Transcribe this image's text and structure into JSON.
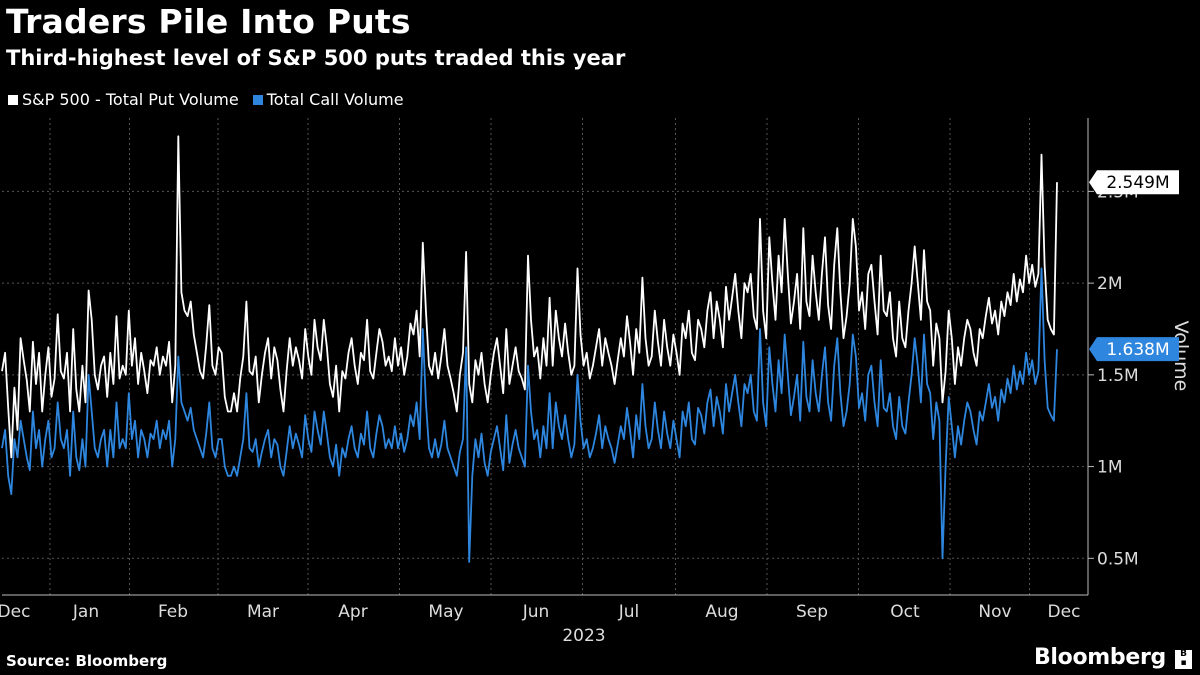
{
  "chart_data": {
    "type": "line",
    "title": "Traders Pile Into Puts",
    "subtitle": "Third-highest level of S&P 500 puts traded this year",
    "ylabel": "Volume",
    "ylim": [
      0.3,
      2.9
    ],
    "yticks": [
      0.5,
      1,
      1.5,
      2,
      2.5
    ],
    "ytick_labels": [
      "0.5M",
      "1M",
      "1.5M",
      "2M",
      "2.5M"
    ],
    "x_start": "2022-12-19",
    "x_end": "2023-12-15",
    "month_ticks": [
      {
        "label": "Dec",
        "date": "2022-12-23"
      },
      {
        "label": "Jan",
        "date": "2023-01-16"
      },
      {
        "label": "Feb",
        "date": "2023-02-14"
      },
      {
        "label": "Mar",
        "date": "2023-03-16"
      },
      {
        "label": "Apr",
        "date": "2023-04-15"
      },
      {
        "label": "May",
        "date": "2023-05-16"
      },
      {
        "label": "Jun",
        "date": "2023-06-15"
      },
      {
        "label": "Jul",
        "date": "2023-07-16"
      },
      {
        "label": "Aug",
        "date": "2023-08-16"
      },
      {
        "label": "Sep",
        "date": "2023-09-15"
      },
      {
        "label": "Oct",
        "date": "2023-10-16"
      },
      {
        "label": "Nov",
        "date": "2023-11-15"
      },
      {
        "label": "Dec",
        "date": "2023-12-08"
      }
    ],
    "x_year_label": "2023",
    "grid": true,
    "legend_position": "top-left",
    "series": [
      {
        "name": "S&P 500 - Total Put Volume",
        "color": "#ffffff",
        "last_value_label": "2.549M",
        "values": [
          1.52,
          1.62,
          1.32,
          1.05,
          1.43,
          1.2,
          1.7,
          1.58,
          1.47,
          1.3,
          1.68,
          1.45,
          1.62,
          1.3,
          1.5,
          1.65,
          1.38,
          1.48,
          1.83,
          1.52,
          1.48,
          1.62,
          1.3,
          1.75,
          1.42,
          1.3,
          1.55,
          1.35,
          1.96,
          1.8,
          1.5,
          1.42,
          1.55,
          1.6,
          1.38,
          1.62,
          1.45,
          1.82,
          1.48,
          1.55,
          1.5,
          1.85,
          1.55,
          1.7,
          1.45,
          1.62,
          1.52,
          1.4,
          1.58,
          1.55,
          1.65,
          1.5,
          1.6,
          1.55,
          1.68,
          1.35,
          1.55,
          2.8,
          1.95,
          1.85,
          1.82,
          1.9,
          1.72,
          1.62,
          1.52,
          1.48,
          1.66,
          1.88,
          1.55,
          1.5,
          1.65,
          1.62,
          1.38,
          1.3,
          1.3,
          1.4,
          1.3,
          1.48,
          1.6,
          1.9,
          1.52,
          1.5,
          1.6,
          1.35,
          1.5,
          1.62,
          1.7,
          1.48,
          1.65,
          1.58,
          1.42,
          1.3,
          1.52,
          1.7,
          1.55,
          1.65,
          1.58,
          1.48,
          1.75,
          1.6,
          1.5,
          1.8,
          1.65,
          1.58,
          1.8,
          1.65,
          1.45,
          1.38,
          1.55,
          1.3,
          1.52,
          1.48,
          1.62,
          1.7,
          1.55,
          1.45,
          1.62,
          1.58,
          1.8,
          1.52,
          1.48,
          1.62,
          1.75,
          1.68,
          1.55,
          1.6,
          1.52,
          1.7,
          1.55,
          1.65,
          1.5,
          1.6,
          1.78,
          1.72,
          1.85,
          1.6,
          2.22,
          1.85,
          1.55,
          1.5,
          1.62,
          1.48,
          1.6,
          1.75,
          1.55,
          1.48,
          1.4,
          1.3,
          1.5,
          1.62,
          2.17,
          1.45,
          1.35,
          1.58,
          1.5,
          1.62,
          1.45,
          1.35,
          1.5,
          1.62,
          1.7,
          1.55,
          1.4,
          1.75,
          1.45,
          1.55,
          1.65,
          1.52,
          1.48,
          1.42,
          2.15,
          1.8,
          1.6,
          1.65,
          1.48,
          1.7,
          1.55,
          1.92,
          1.55,
          1.85,
          1.7,
          1.6,
          1.78,
          1.62,
          1.5,
          1.55,
          2.08,
          1.72,
          1.55,
          1.62,
          1.48,
          1.55,
          1.65,
          1.75,
          1.55,
          1.7,
          1.62,
          1.55,
          1.45,
          1.58,
          1.7,
          1.6,
          1.82,
          1.68,
          1.5,
          1.75,
          1.62,
          2.03,
          1.7,
          1.55,
          1.6,
          1.85,
          1.68,
          1.55,
          1.8,
          1.65,
          1.55,
          1.72,
          1.62,
          1.5,
          1.78,
          1.7,
          1.85,
          1.62,
          1.58,
          1.8,
          1.75,
          1.65,
          1.85,
          1.95,
          1.7,
          1.9,
          1.8,
          1.65,
          1.98,
          1.8,
          1.92,
          2.05,
          1.85,
          1.7,
          2.0,
          1.95,
          2.05,
          1.82,
          1.75,
          2.35,
          1.85,
          1.7,
          2.25,
          2.0,
          1.8,
          2.15,
          1.95,
          2.35,
          2.05,
          1.78,
          1.9,
          2.05,
          1.75,
          2.3,
          1.9,
          1.82,
          2.15,
          1.95,
          1.8,
          2.05,
          2.25,
          1.88,
          1.75,
          2.1,
          2.3,
          1.95,
          1.7,
          1.82,
          2.0,
          2.35,
          2.2,
          1.85,
          1.95,
          1.75,
          2.05,
          2.1,
          1.9,
          1.72,
          2.15,
          1.85,
          1.82,
          1.95,
          1.7,
          1.6,
          1.9,
          1.7,
          1.65,
          1.85,
          2.0,
          2.2,
          2.0,
          1.8,
          2.18,
          1.9,
          1.85,
          1.55,
          1.78,
          1.7,
          1.35,
          1.52,
          1.85,
          1.7,
          1.45,
          1.65,
          1.55,
          1.7,
          1.8,
          1.75,
          1.62,
          1.55,
          1.75,
          1.7,
          1.82,
          1.92,
          1.78,
          1.85,
          1.72,
          1.9,
          1.82,
          1.95,
          1.88,
          2.05,
          1.9,
          2.02,
          1.95,
          2.15,
          2.0,
          2.1,
          1.98,
          2.05,
          2.7,
          2.1,
          1.8,
          1.75,
          1.72,
          2.55
        ]
      },
      {
        "name": "Total Call Volume",
        "color": "#2e86de",
        "last_value_label": "1.638M",
        "values": [
          1.1,
          1.2,
          0.95,
          0.85,
          1.15,
          1.05,
          1.25,
          1.15,
          1.05,
          0.98,
          1.3,
          1.1,
          1.2,
          1.0,
          1.15,
          1.25,
          1.05,
          1.1,
          1.35,
          1.15,
          1.1,
          1.2,
          0.95,
          1.3,
          1.05,
          0.98,
          1.15,
          1.0,
          1.5,
          1.3,
          1.1,
          1.05,
          1.15,
          1.2,
          1.0,
          1.2,
          1.05,
          1.35,
          1.1,
          1.15,
          1.1,
          1.4,
          1.15,
          1.25,
          1.05,
          1.2,
          1.15,
          1.05,
          1.18,
          1.15,
          1.25,
          1.1,
          1.2,
          1.15,
          1.25,
          1.0,
          1.15,
          1.6,
          1.35,
          1.3,
          1.25,
          1.32,
          1.2,
          1.15,
          1.1,
          1.05,
          1.18,
          1.35,
          1.1,
          1.05,
          1.15,
          1.15,
          1.0,
          0.95,
          0.95,
          1.0,
          0.95,
          1.05,
          1.15,
          1.4,
          1.1,
          1.08,
          1.15,
          1.0,
          1.08,
          1.15,
          1.2,
          1.05,
          1.15,
          1.12,
          1.0,
          0.95,
          1.08,
          1.22,
          1.1,
          1.18,
          1.12,
          1.05,
          1.28,
          1.15,
          1.08,
          1.3,
          1.2,
          1.12,
          1.3,
          1.18,
          1.05,
          1.0,
          1.12,
          0.95,
          1.1,
          1.05,
          1.15,
          1.22,
          1.1,
          1.05,
          1.18,
          1.12,
          1.3,
          1.1,
          1.05,
          1.18,
          1.28,
          1.22,
          1.1,
          1.15,
          1.1,
          1.22,
          1.1,
          1.18,
          1.08,
          1.15,
          1.28,
          1.22,
          1.35,
          1.15,
          1.75,
          1.35,
          1.1,
          1.05,
          1.15,
          1.05,
          1.12,
          1.25,
          1.1,
          1.05,
          1.0,
          0.95,
          1.08,
          1.15,
          1.65,
          0.48,
          0.95,
          1.15,
          1.05,
          1.18,
          1.02,
          0.95,
          1.08,
          1.15,
          1.22,
          1.1,
          0.98,
          1.28,
          1.02,
          1.12,
          1.2,
          1.1,
          1.05,
          1.0,
          1.55,
          1.3,
          1.15,
          1.2,
          1.05,
          1.22,
          1.1,
          1.4,
          1.1,
          1.35,
          1.22,
          1.15,
          1.28,
          1.15,
          1.05,
          1.12,
          1.5,
          1.25,
          1.1,
          1.15,
          1.05,
          1.1,
          1.18,
          1.28,
          1.1,
          1.22,
          1.15,
          1.1,
          1.02,
          1.12,
          1.22,
          1.15,
          1.32,
          1.2,
          1.05,
          1.28,
          1.15,
          1.45,
          1.22,
          1.1,
          1.15,
          1.35,
          1.2,
          1.1,
          1.3,
          1.18,
          1.1,
          1.25,
          1.15,
          1.05,
          1.3,
          1.22,
          1.35,
          1.15,
          1.12,
          1.32,
          1.28,
          1.18,
          1.35,
          1.42,
          1.22,
          1.38,
          1.3,
          1.18,
          1.45,
          1.3,
          1.4,
          1.5,
          1.35,
          1.22,
          1.45,
          1.4,
          1.5,
          1.3,
          1.25,
          1.75,
          1.35,
          1.22,
          1.65,
          1.45,
          1.3,
          1.58,
          1.4,
          1.72,
          1.5,
          1.28,
          1.38,
          1.5,
          1.25,
          1.68,
          1.38,
          1.3,
          1.58,
          1.4,
          1.3,
          1.5,
          1.65,
          1.35,
          1.25,
          1.55,
          1.7,
          1.4,
          1.22,
          1.3,
          1.45,
          1.72,
          1.6,
          1.32,
          1.4,
          1.25,
          1.5,
          1.55,
          1.35,
          1.22,
          1.58,
          1.32,
          1.3,
          1.4,
          1.22,
          1.15,
          1.38,
          1.22,
          1.18,
          1.35,
          1.5,
          1.7,
          1.55,
          1.35,
          1.72,
          1.45,
          1.4,
          1.15,
          1.35,
          1.25,
          0.5,
          1.0,
          1.38,
          1.22,
          1.05,
          1.22,
          1.12,
          1.25,
          1.35,
          1.3,
          1.2,
          1.12,
          1.3,
          1.25,
          1.35,
          1.45,
          1.32,
          1.38,
          1.25,
          1.42,
          1.35,
          1.48,
          1.4,
          1.55,
          1.42,
          1.52,
          1.45,
          1.62,
          1.5,
          1.58,
          1.45,
          1.52,
          2.08,
          1.58,
          1.32,
          1.28,
          1.25,
          1.64
        ]
      }
    ]
  },
  "title": "Traders Pile Into Puts",
  "subtitle": "Third-highest level of S&P 500 puts traded this year",
  "legend": {
    "put_label": "S&P 500 - Total Put Volume",
    "call_label": "Total Call Volume",
    "put_color": "#ffffff",
    "call_color": "#2e86de"
  },
  "source": "Source: Bloomberg",
  "brand": "Bloomberg"
}
